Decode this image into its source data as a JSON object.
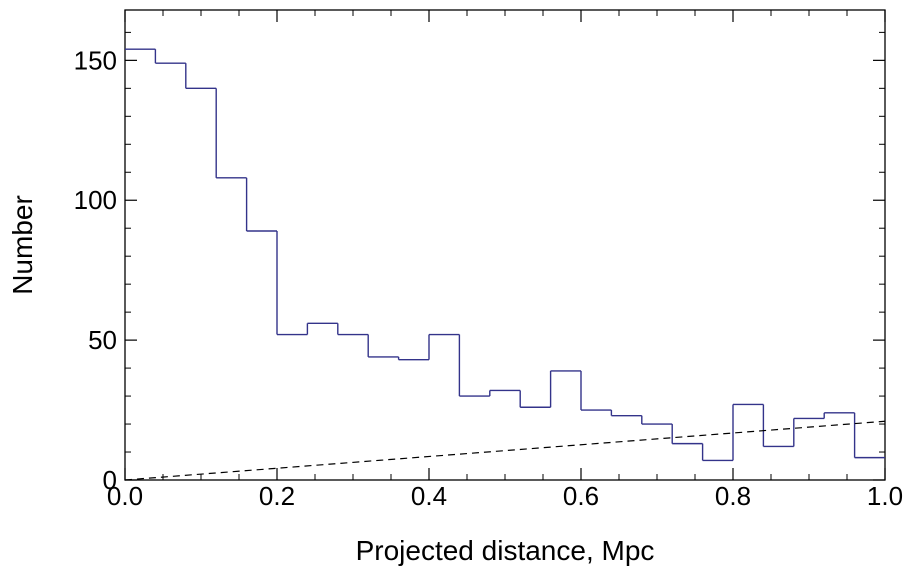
{
  "chart_data": {
    "type": "histogram",
    "title": "",
    "xlabel": "Projected distance,  Mpc",
    "ylabel": "Number",
    "xlim": [
      0.0,
      1.0
    ],
    "ylim": [
      0,
      168
    ],
    "x_ticks": [
      "0.0",
      "0.2",
      "0.4",
      "0.6",
      "0.8",
      "1.0"
    ],
    "y_ticks": [
      "0",
      "50",
      "100",
      "150"
    ],
    "grid": false,
    "bin_edges": [
      0.0,
      0.04,
      0.08,
      0.12,
      0.16,
      0.2,
      0.24,
      0.28,
      0.32,
      0.36,
      0.4,
      0.44,
      0.48,
      0.52,
      0.56,
      0.6,
      0.64,
      0.68,
      0.72,
      0.76,
      0.8,
      0.84,
      0.88,
      0.92,
      0.96,
      1.0
    ],
    "series": [
      {
        "style": "step",
        "color": "#33338a",
        "values": [
          154,
          149,
          140,
          108,
          89,
          52,
          56,
          52,
          44,
          43,
          52,
          30,
          32,
          26,
          39,
          25,
          23,
          20,
          13,
          7,
          27,
          12,
          22,
          24,
          8
        ]
      },
      {
        "style": "dashed-line",
        "color": "#000000",
        "x": [
          0.0,
          1.0
        ],
        "y": [
          0,
          21
        ]
      }
    ]
  }
}
